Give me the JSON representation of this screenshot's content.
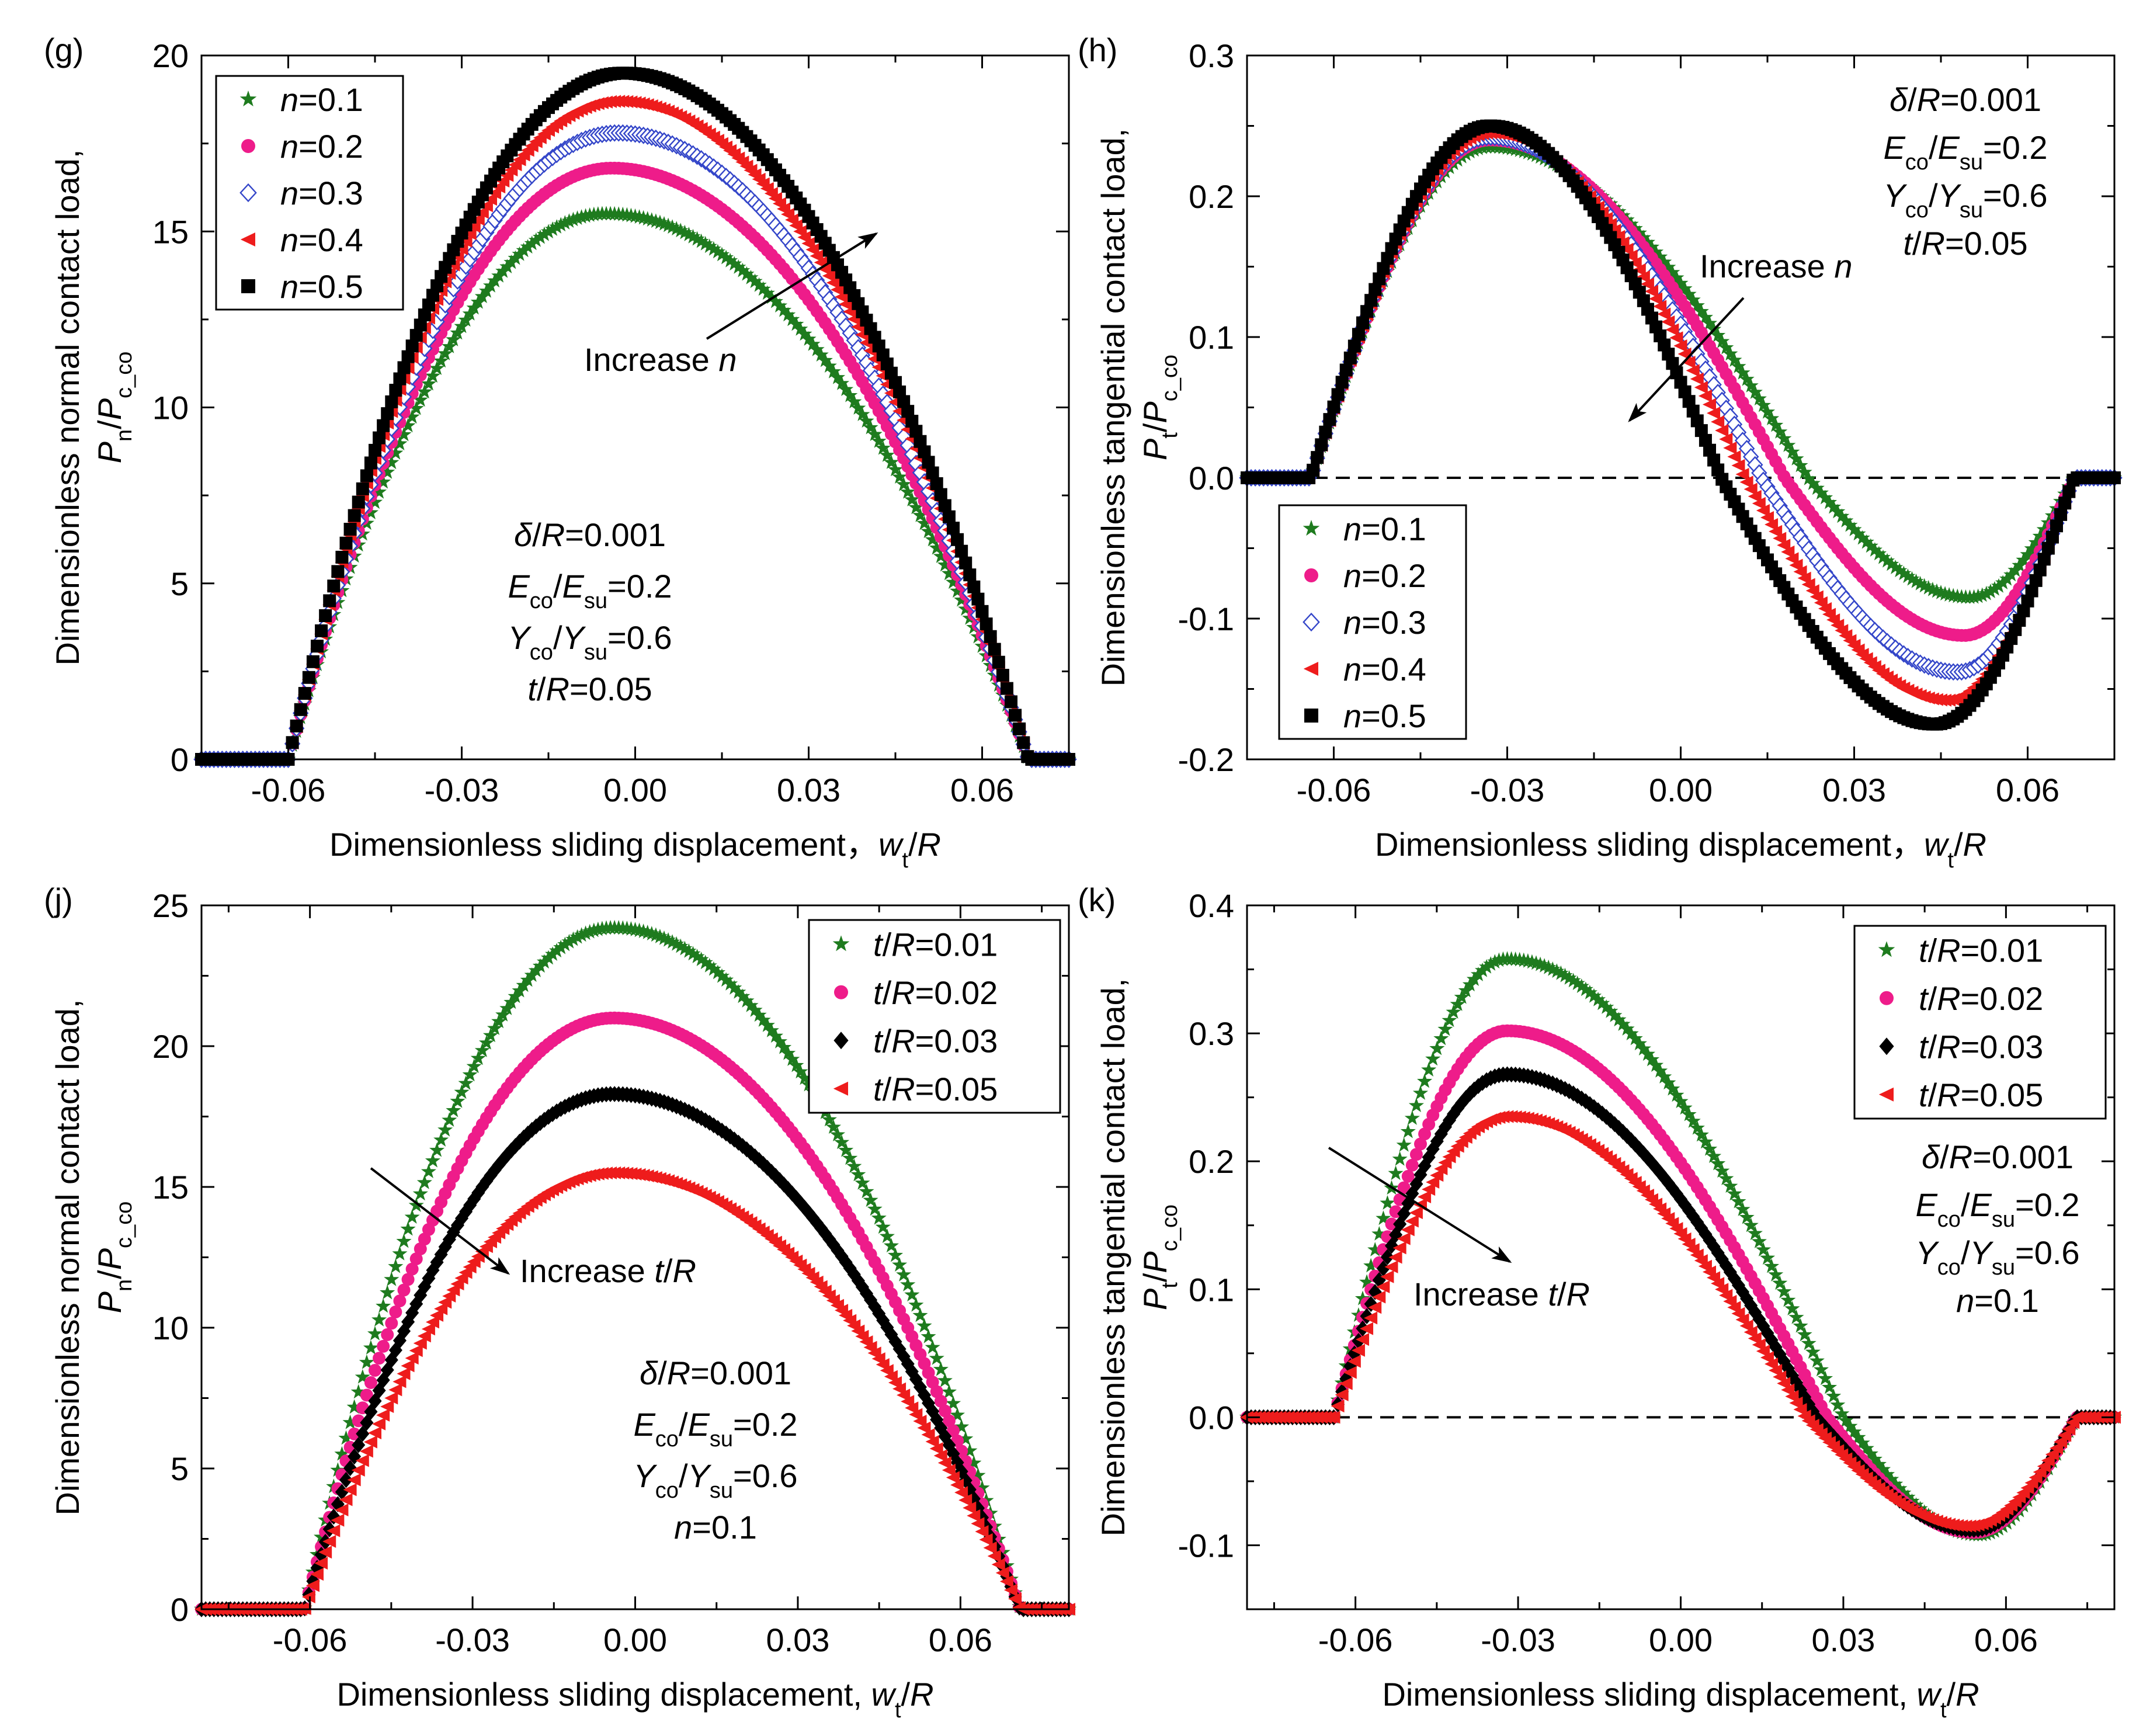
{
  "colors": {
    "green": "#1e7b1e",
    "pink": "#ee1c8a",
    "blue": "#3446c9",
    "red": "#ee1c1c",
    "black": "#000000",
    "axis": "#000000"
  },
  "chart_data": [
    {
      "id": "g",
      "type": "scatter",
      "panel_label": "(g)",
      "xlabel": "Dimensionless sliding displacement，",
      "xsym": "w",
      "xsub": "t",
      "xtail": "/R",
      "ylabel_main": "Dimensionless normal contact load,",
      "ysym": "P",
      "ysub": "n",
      "ymid": "/P",
      "ysub2": "c_co",
      "xlim": [
        -0.075,
        0.075
      ],
      "ylim": [
        0,
        20
      ],
      "xticks": [
        -0.06,
        -0.03,
        0.0,
        0.03,
        0.06
      ],
      "xtick_labels": [
        "-0.06",
        "-0.03",
        "0.00",
        "0.03",
        "0.06"
      ],
      "yticks": [
        0,
        5,
        10,
        15,
        20
      ],
      "ytick_labels": [
        "0",
        "5",
        "10",
        "15",
        "20"
      ],
      "legend_position": "top-left",
      "series": [
        {
          "name": "n=0.1",
          "pre": "n",
          "post": "=0.1",
          "color": "green",
          "marker": "star",
          "x0": -0.06,
          "x1": 0.068,
          "xp": -0.005,
          "peak": 15.5
        },
        {
          "name": "n=0.2",
          "pre": "n",
          "post": "=0.2",
          "color": "pink",
          "marker": "circle",
          "x0": -0.06,
          "x1": 0.068,
          "xp": -0.004,
          "peak": 16.8
        },
        {
          "name": "n=0.3",
          "pre": "n",
          "post": "=0.3",
          "color": "blue",
          "marker": "diamond-open",
          "x0": -0.06,
          "x1": 0.068,
          "xp": -0.003,
          "peak": 17.8
        },
        {
          "name": "n=0.4",
          "pre": "n",
          "post": "=0.4",
          "color": "red",
          "marker": "triangle-left",
          "x0": -0.06,
          "x1": 0.068,
          "xp": -0.003,
          "peak": 18.7
        },
        {
          "name": "n=0.5",
          "pre": "n",
          "post": "=0.5",
          "color": "black",
          "marker": "square",
          "x0": -0.06,
          "x1": 0.068,
          "xp": -0.002,
          "peak": 19.5
        }
      ],
      "annotation": {
        "pre": "Increase ",
        "italic": "n"
      },
      "params": [
        {
          "pre": "δ",
          "mid": "/",
          "post": "R=0.001"
        },
        {
          "a": "E",
          "as": "co",
          "b": "E",
          "bs": "su",
          "val": "=0.2"
        },
        {
          "a": "Y",
          "as": "co",
          "b": "Y",
          "bs": "su",
          "val": "=0.6"
        },
        {
          "pre": "t",
          "mid": "/",
          "post": "R=0.05"
        }
      ]
    },
    {
      "id": "h",
      "type": "scatter",
      "panel_label": "(h)",
      "xlabel": "Dimensionless sliding displacement，",
      "xsym": "w",
      "xsub": "t",
      "xtail": "/R",
      "ylabel_main": "Dimensionless tangential contact load,",
      "ysym": "P",
      "ysub": "t",
      "ymid": "/P",
      "ysub2": "c_co",
      "xlim": [
        -0.075,
        0.075
      ],
      "ylim": [
        -0.2,
        0.3
      ],
      "xticks": [
        -0.06,
        -0.03,
        0.0,
        0.03,
        0.06
      ],
      "xtick_labels": [
        "-0.06",
        "-0.03",
        "0.00",
        "0.03",
        "0.06"
      ],
      "yticks": [
        -0.2,
        -0.1,
        0.0,
        0.1,
        0.2,
        0.3
      ],
      "ytick_labels": [
        "-0.2",
        "-0.1",
        "0.0",
        "0.1",
        "0.2",
        "0.3"
      ],
      "legend_position": "bottom-left",
      "series": [
        {
          "name": "n=0.1",
          "pre": "n",
          "post": "=0.1",
          "color": "green",
          "marker": "star",
          "x0": -0.064,
          "x1": 0.068,
          "xpk": -0.033,
          "pk": 0.235,
          "xz": 0.022,
          "xtr": 0.05,
          "tr": -0.085
        },
        {
          "name": "n=0.2",
          "pre": "n",
          "post": "=0.2",
          "color": "pink",
          "marker": "circle",
          "x0": -0.064,
          "x1": 0.068,
          "xpk": -0.033,
          "pk": 0.24,
          "xz": 0.018,
          "xtr": 0.049,
          "tr": -0.112
        },
        {
          "name": "n=0.3",
          "pre": "n",
          "post": "=0.3",
          "color": "blue",
          "marker": "diamond-open",
          "x0": -0.064,
          "x1": 0.068,
          "xpk": -0.033,
          "pk": 0.242,
          "xz": 0.014,
          "xtr": 0.048,
          "tr": -0.138
        },
        {
          "name": "n=0.4",
          "pre": "n",
          "post": "=0.4",
          "color": "red",
          "marker": "triangle-left",
          "x0": -0.064,
          "x1": 0.068,
          "xpk": -0.033,
          "pk": 0.245,
          "xz": 0.011,
          "xtr": 0.046,
          "tr": -0.158
        },
        {
          "name": "n=0.5",
          "pre": "n",
          "post": "=0.5",
          "color": "black",
          "marker": "square",
          "x0": -0.064,
          "x1": 0.068,
          "xpk": -0.033,
          "pk": 0.25,
          "xz": 0.007,
          "xtr": 0.044,
          "tr": -0.175
        }
      ],
      "annotation": {
        "pre": "Increase ",
        "italic": "n"
      },
      "params": [
        {
          "pre": "δ",
          "mid": "/",
          "post": "R=0.001"
        },
        {
          "a": "E",
          "as": "co",
          "b": "E",
          "bs": "su",
          "val": "=0.2"
        },
        {
          "a": "Y",
          "as": "co",
          "b": "Y",
          "bs": "su",
          "val": "=0.6"
        },
        {
          "pre": "t",
          "mid": "/",
          "post": "R=0.05"
        }
      ]
    },
    {
      "id": "j",
      "type": "scatter",
      "panel_label": "(j)",
      "xlabel": "Dimensionless sliding displacement, ",
      "xsym": "w",
      "xsub": "t",
      "xtail": "/R",
      "ylabel_main": "Dimensionless normal contact load,",
      "ysym": "P",
      "ysub": "n",
      "ymid": "/P",
      "ysub2": "c_co",
      "xlim": [
        -0.08,
        0.08
      ],
      "ylim": [
        0,
        25
      ],
      "xticks": [
        -0.06,
        -0.03,
        0.0,
        0.03,
        0.06
      ],
      "xtick_labels": [
        "-0.06",
        "-0.03",
        "0.00",
        "0.03",
        "0.06"
      ],
      "yticks": [
        0,
        5,
        10,
        15,
        20,
        25
      ],
      "ytick_labels": [
        "0",
        "5",
        "10",
        "15",
        "20",
        "25"
      ],
      "legend_position": "top-right",
      "series": [
        {
          "name": "t/R=0.01",
          "pre": "t",
          "post": "/R=0.01",
          "color": "green",
          "marker": "star",
          "x0": -0.061,
          "x1": 0.071,
          "xp": -0.004,
          "peak": 24.2
        },
        {
          "name": "t/R=0.02",
          "pre": "t",
          "post": "/R=0.02",
          "color": "pink",
          "marker": "circle",
          "x0": -0.061,
          "x1": 0.071,
          "xp": -0.004,
          "peak": 21.0
        },
        {
          "name": "t/R=0.03",
          "pre": "t",
          "post": "/R=0.03",
          "color": "black",
          "marker": "diamond",
          "x0": -0.061,
          "x1": 0.071,
          "xp": -0.004,
          "peak": 18.3
        },
        {
          "name": "t/R=0.05",
          "pre": "t",
          "post": "/R=0.05",
          "color": "red",
          "marker": "triangle-left",
          "x0": -0.061,
          "x1": 0.071,
          "xp": -0.004,
          "peak": 15.5
        }
      ],
      "annotation": {
        "pre": "Increase ",
        "italic": "t/R"
      },
      "params": [
        {
          "pre": "δ",
          "mid": "/",
          "post": "R=0.001"
        },
        {
          "a": "E",
          "as": "co",
          "b": "E",
          "bs": "su",
          "val": "=0.2"
        },
        {
          "a": "Y",
          "as": "co",
          "b": "Y",
          "bs": "su",
          "val": "=0.6"
        },
        {
          "pre": "n",
          "mid": "",
          "post": "=0.1"
        }
      ]
    },
    {
      "id": "k",
      "type": "scatter",
      "panel_label": "(k)",
      "xlabel": "Dimensionless sliding displacement, ",
      "xsym": "w",
      "xsub": "t",
      "xtail": "/R",
      "ylabel_main": "Dimensionless tangential contact load,",
      "ysym": "P",
      "ysub": "t",
      "ymid": "/P",
      "ysub2": "c_co",
      "xlim": [
        -0.08,
        0.08
      ],
      "ylim": [
        -0.15,
        0.4
      ],
      "xticks": [
        -0.06,
        -0.03,
        0.0,
        0.03,
        0.06
      ],
      "xtick_labels": [
        "-0.06",
        "-0.03",
        "0.00",
        "0.03",
        "0.06"
      ],
      "yticks": [
        -0.1,
        0.0,
        0.1,
        0.2,
        0.3,
        0.4
      ],
      "ytick_labels": [
        "-0.1",
        "0.0",
        "0.1",
        "0.2",
        "0.3",
        "0.4"
      ],
      "legend_position": "top-right",
      "series": [
        {
          "name": "t/R=0.01",
          "pre": "t",
          "post": "/R=0.01",
          "color": "green",
          "marker": "star",
          "x0": -0.064,
          "x1": 0.073,
          "xpk": -0.032,
          "pk": 0.358,
          "xz": 0.03,
          "xtr": 0.055,
          "tr": -0.092
        },
        {
          "name": "t/R=0.02",
          "pre": "t",
          "post": "/R=0.02",
          "color": "pink",
          "marker": "circle",
          "x0": -0.064,
          "x1": 0.073,
          "xpk": -0.032,
          "pk": 0.302,
          "xz": 0.027,
          "xtr": 0.054,
          "tr": -0.09
        },
        {
          "name": "t/R=0.03",
          "pre": "t",
          "post": "/R=0.03",
          "color": "black",
          "marker": "diamond",
          "x0": -0.064,
          "x1": 0.073,
          "xpk": -0.032,
          "pk": 0.268,
          "xz": 0.025,
          "xtr": 0.054,
          "tr": -0.088
        },
        {
          "name": "t/R=0.05",
          "pre": "t",
          "post": "/R=0.05",
          "color": "red",
          "marker": "triangle-left",
          "x0": -0.064,
          "x1": 0.073,
          "xpk": -0.032,
          "pk": 0.235,
          "xz": 0.023,
          "xtr": 0.053,
          "tr": -0.085
        }
      ],
      "annotation": {
        "pre": "Increase ",
        "italic": "t/R"
      },
      "params": [
        {
          "pre": "δ",
          "mid": "/",
          "post": "R=0.001"
        },
        {
          "a": "E",
          "as": "co",
          "b": "E",
          "bs": "su",
          "val": "=0.2"
        },
        {
          "a": "Y",
          "as": "co",
          "b": "Y",
          "bs": "su",
          "val": "=0.6"
        },
        {
          "pre": "n",
          "mid": "",
          "post": "=0.1"
        }
      ]
    }
  ]
}
